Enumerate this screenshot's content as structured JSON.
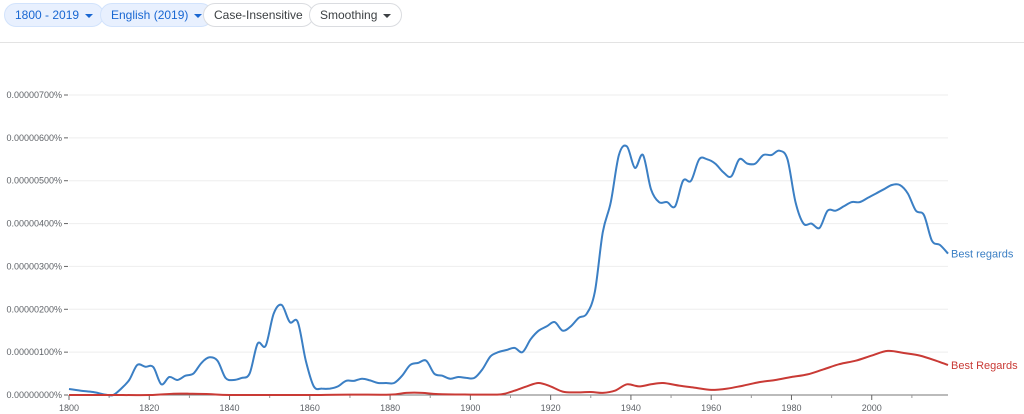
{
  "toolbar": {
    "year_range": "1800 - 2019",
    "corpus": "English (2019)",
    "case_insensitive": "Case-Insensitive",
    "smoothing": "Smoothing"
  },
  "chart_data": {
    "type": "line",
    "xlim": [
      1800,
      2019
    ],
    "ylim": [
      0,
      7e-06
    ],
    "y_ticks": [
      "0.00000000%",
      "0.00000100%",
      "0.00000200%",
      "0.00000300%",
      "0.00000400%",
      "0.00000500%",
      "0.00000600%",
      "0.00000700%"
    ],
    "x_ticks": [
      "1800",
      "1820",
      "1840",
      "1860",
      "1880",
      "1900",
      "1920",
      "1940",
      "1960",
      "1980",
      "2000"
    ],
    "grid": true,
    "legend": "inline-right",
    "series": [
      {
        "name": "Best regards",
        "color": "#3b7fc4",
        "x": [
          1800,
          1803,
          1806,
          1809,
          1811,
          1813,
          1815,
          1817,
          1819,
          1821,
          1823,
          1825,
          1827,
          1829,
          1831,
          1833,
          1835,
          1837,
          1839,
          1841,
          1843,
          1845,
          1847,
          1849,
          1851,
          1853,
          1855,
          1857,
          1859,
          1861,
          1863,
          1865,
          1867,
          1869,
          1871,
          1873,
          1875,
          1877,
          1879,
          1881,
          1883,
          1885,
          1887,
          1889,
          1891,
          1893,
          1895,
          1897,
          1899,
          1901,
          1903,
          1905,
          1907,
          1909,
          1911,
          1913,
          1915,
          1917,
          1919,
          1921,
          1923,
          1925,
          1927,
          1929,
          1931,
          1933,
          1935,
          1937,
          1939,
          1941,
          1943,
          1945,
          1947,
          1949,
          1951,
          1953,
          1955,
          1957,
          1959,
          1961,
          1963,
          1965,
          1967,
          1969,
          1971,
          1973,
          1975,
          1977,
          1979,
          1981,
          1983,
          1985,
          1987,
          1989,
          1991,
          1993,
          1995,
          1997,
          1999,
          2001,
          2003,
          2005,
          2007,
          2009,
          2011,
          2013,
          2015,
          2017,
          2019
        ],
        "y": [
          1.4e-07,
          1e-07,
          7e-08,
          1e-08,
          0.0,
          1.5e-07,
          3.5e-07,
          7e-07,
          6.6e-07,
          6.5e-07,
          2.5e-07,
          4.2e-07,
          3.5e-07,
          4.5e-07,
          5e-07,
          7.5e-07,
          8.8e-07,
          8e-07,
          4e-07,
          3.5e-07,
          4e-07,
          5e-07,
          1.2e-06,
          1.15e-06,
          1.9e-06,
          2.1e-06,
          1.7e-06,
          1.7e-06,
          8e-07,
          2e-07,
          1.5e-07,
          1.5e-07,
          2e-07,
          3.3e-07,
          3.3e-07,
          3.8e-07,
          3.4e-07,
          2.8e-07,
          2.8e-07,
          2.8e-07,
          4.5e-07,
          7e-07,
          7.5e-07,
          8e-07,
          5e-07,
          4.5e-07,
          3.8e-07,
          4.2e-07,
          4e-07,
          4e-07,
          6e-07,
          9e-07,
          1e-06,
          1.05e-06,
          1.1e-06,
          1e-06,
          1.3e-06,
          1.5e-06,
          1.6e-06,
          1.7e-06,
          1.5e-06,
          1.6e-06,
          1.8e-06,
          1.9e-06,
          2.4e-06,
          3.8e-06,
          4.5e-06,
          5.6e-06,
          5.8e-06,
          5.3e-06,
          5.6e-06,
          4.8e-06,
          4.5e-06,
          4.5e-06,
          4.4e-06,
          5e-06,
          5e-06,
          5.5e-06,
          5.5e-06,
          5.4e-06,
          5.2e-06,
          5.1e-06,
          5.5e-06,
          5.4e-06,
          5.4e-06,
          5.6e-06,
          5.6e-06,
          5.7e-06,
          5.5e-06,
          4.5e-06,
          4e-06,
          4e-06,
          3.9e-06,
          4.3e-06,
          4.3e-06,
          4.4e-06,
          4.5e-06,
          4.5e-06,
          4.6e-06,
          4.7e-06,
          4.8e-06,
          4.9e-06,
          4.9e-06,
          4.7e-06,
          4.3e-06,
          4.2e-06,
          3.6e-06,
          3.5e-06,
          3.3e-06
        ]
      },
      {
        "name": "Best Regards",
        "color": "#c93a35",
        "x": [
          1800,
          1810,
          1820,
          1826,
          1830,
          1835,
          1840,
          1850,
          1860,
          1870,
          1880,
          1884,
          1888,
          1892,
          1900,
          1905,
          1908,
          1911,
          1914,
          1917,
          1920,
          1923,
          1926,
          1930,
          1933,
          1936,
          1939,
          1942,
          1945,
          1948,
          1952,
          1956,
          1960,
          1964,
          1968,
          1972,
          1976,
          1980,
          1984,
          1988,
          1992,
          1996,
          2000,
          2004,
          2008,
          2012,
          2016,
          2019
        ],
        "y": [
          0.0,
          0.0,
          0.0,
          3e-08,
          3e-08,
          2e-08,
          0.0,
          0.0,
          0.0,
          1e-08,
          1e-08,
          5e-08,
          5e-08,
          2e-08,
          1e-08,
          1e-08,
          2e-08,
          1e-07,
          2e-07,
          2.8e-07,
          2e-07,
          8e-08,
          6e-08,
          7e-08,
          5e-08,
          1e-07,
          2.5e-07,
          2e-07,
          2.5e-07,
          2.8e-07,
          2.2e-07,
          1.7e-07,
          1.2e-07,
          1.5e-07,
          2.2e-07,
          3e-07,
          3.5e-07,
          4.2e-07,
          4.8e-07,
          6e-07,
          7.2e-07,
          8e-07,
          9.2e-07,
          1.03e-06,
          9.8e-07,
          9.2e-07,
          8e-07,
          7e-07
        ]
      }
    ]
  }
}
